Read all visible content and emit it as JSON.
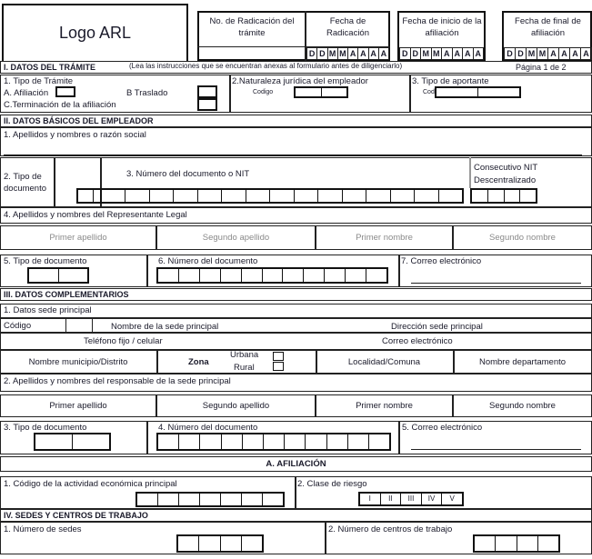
{
  "header": {
    "logo": "Logo ARL",
    "radicacion": "No. de Radicación del trámite",
    "fecha_radicacion": "Fecha de Radicación",
    "fecha_inicio": "Fecha de inicio de la afiliación",
    "fecha_final": "Fecha de final de afiliación",
    "date_letters": [
      "D",
      "D",
      "M",
      "M",
      "A",
      "A",
      "A",
      "A"
    ]
  },
  "s1": {
    "title": "I. DATOS DEL TRÁMITE",
    "instructions": "(Lea las instrucciones que se encuentran anexas al formulario antes de diligenciarlo)",
    "page": "Página 1 de 2",
    "tipo": "1. Tipo de Trámite",
    "afiliacion": "A. Afiliación",
    "traslado": "B Traslado",
    "terminacion": "C.Terminación de la afiliación",
    "naturaleza": "2.Naturaleza jurídica del empleador",
    "codigo": "Codigo",
    "aportante": "3. Tipo de aportante"
  },
  "s2": {
    "title": "II. DATOS BÁSICOS DEL EMPLEADOR",
    "razon": "1. Apellidos y nombres o razón social",
    "tipo_doc": "2. Tipo de documento",
    "nit": "3. Número del documento o NIT",
    "consecutivo": "Consecutivo NIT Descentralizado",
    "rep": "4. Apellidos y nombres  del Representante Legal",
    "names": [
      "Primer apellido",
      "Segundo apellido",
      "Primer nombre",
      "Segundo nombre"
    ],
    "tipo5": "5. Tipo de documento",
    "num6": "6. Número del documento",
    "correo7": "7. Correo electrónico"
  },
  "s3": {
    "title": "III. DATOS COMPLEMENTARIOS",
    "sede": "1. Datos sede principal",
    "codigo": "Código",
    "nombre_sede": "Nombre de la sede principal",
    "direccion": "Dirección sede principal",
    "telefono": "Teléfono fijo / celular",
    "correo": "Correo electrónico",
    "municipio": "Nombre municipio/Distrito",
    "zona": "Zona",
    "urbana": "Urbana",
    "rural": "Rural",
    "localidad": "Localidad/Comuna",
    "departamento": "Nombre departamento",
    "responsable": "2. Apellidos y nombres  del responsable de la sede principal",
    "names": [
      "Primer apellido",
      "Segundo apellido",
      "Primer nombre",
      "Segundo nombre"
    ],
    "tipo3": "3. Tipo de documento",
    "num4": "4. Número del documento",
    "correo5": "5. Correo electrónico"
  },
  "afiliacion": {
    "title": "A. AFILIACIÓN",
    "actividad": "1. Código de la actividad económica principal",
    "riesgo": "2. Clase de riesgo",
    "clases": [
      "I",
      "II",
      "III",
      "IV",
      "V"
    ]
  },
  "s4": {
    "title": "IV. SEDES Y CENTROS DE TRABAJO",
    "sedes": "1. Número de sedes",
    "centros": "2. Número de centros de trabajo"
  }
}
